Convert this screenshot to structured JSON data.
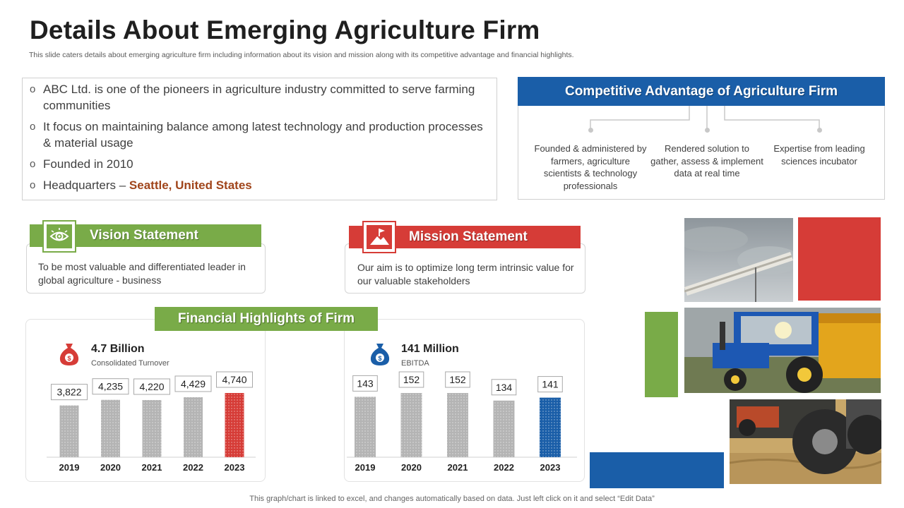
{
  "title": "Details About Emerging Agriculture Firm",
  "subtitle": "This slide caters details about emerging agriculture firm including information about its vision and mission along with its competitive advantage and financial highlights.",
  "info": {
    "items": [
      "ABC Ltd. is one of the pioneers in agriculture industry committed to serve farming communities",
      "It focus on maintaining balance among latest technology and production processes & material usage",
      "Founded in 2010"
    ],
    "hq_label": "Headquarters – ",
    "hq_value": "Seattle, United States"
  },
  "competitive": {
    "title": "Competitive Advantage of Agriculture Firm",
    "items": [
      "Founded & administered by farmers, agriculture scientists & technology professionals",
      "Rendered solution to gather, assess & implement data at real time",
      "Expertise from leading sciences incubator"
    ]
  },
  "vision": {
    "title": "Vision Statement",
    "text": "To be most valuable and differentiated leader in global agriculture - business"
  },
  "mission": {
    "title": "Mission Statement",
    "text": "Our aim is to optimize long term intrinsic value for our valuable stakeholders"
  },
  "financial": {
    "title": "Financial Highlights of Firm"
  },
  "colors": {
    "blue": "#1a5ea8",
    "green": "#79ab48",
    "red": "#d63c37",
    "gray_bar": "#b4b4b4"
  },
  "chart_data": [
    {
      "type": "bar",
      "title": "4.7 Billion",
      "subtitle": "Consolidated Turnover",
      "categories": [
        "2019",
        "2020",
        "2021",
        "2022",
        "2023"
      ],
      "values": [
        3822,
        4235,
        4220,
        4429,
        4740
      ],
      "labels": [
        "3,822",
        "4,235",
        "4,220",
        "4,429",
        "4,740"
      ],
      "highlight_index": 4,
      "highlight_color": "#d63c37"
    },
    {
      "type": "bar",
      "title": "141 Million",
      "subtitle": "EBITDA",
      "categories": [
        "2019",
        "2020",
        "2021",
        "2022",
        "2023"
      ],
      "values": [
        143,
        152,
        152,
        134,
        141
      ],
      "labels": [
        "143",
        "152",
        "152",
        "134",
        "141"
      ],
      "highlight_index": 4,
      "highlight_color": "#1a5ea8"
    }
  ],
  "footnote": "This graph/chart is linked to excel, and changes automatically based on data. Just left click on it and select “Edit Data”"
}
